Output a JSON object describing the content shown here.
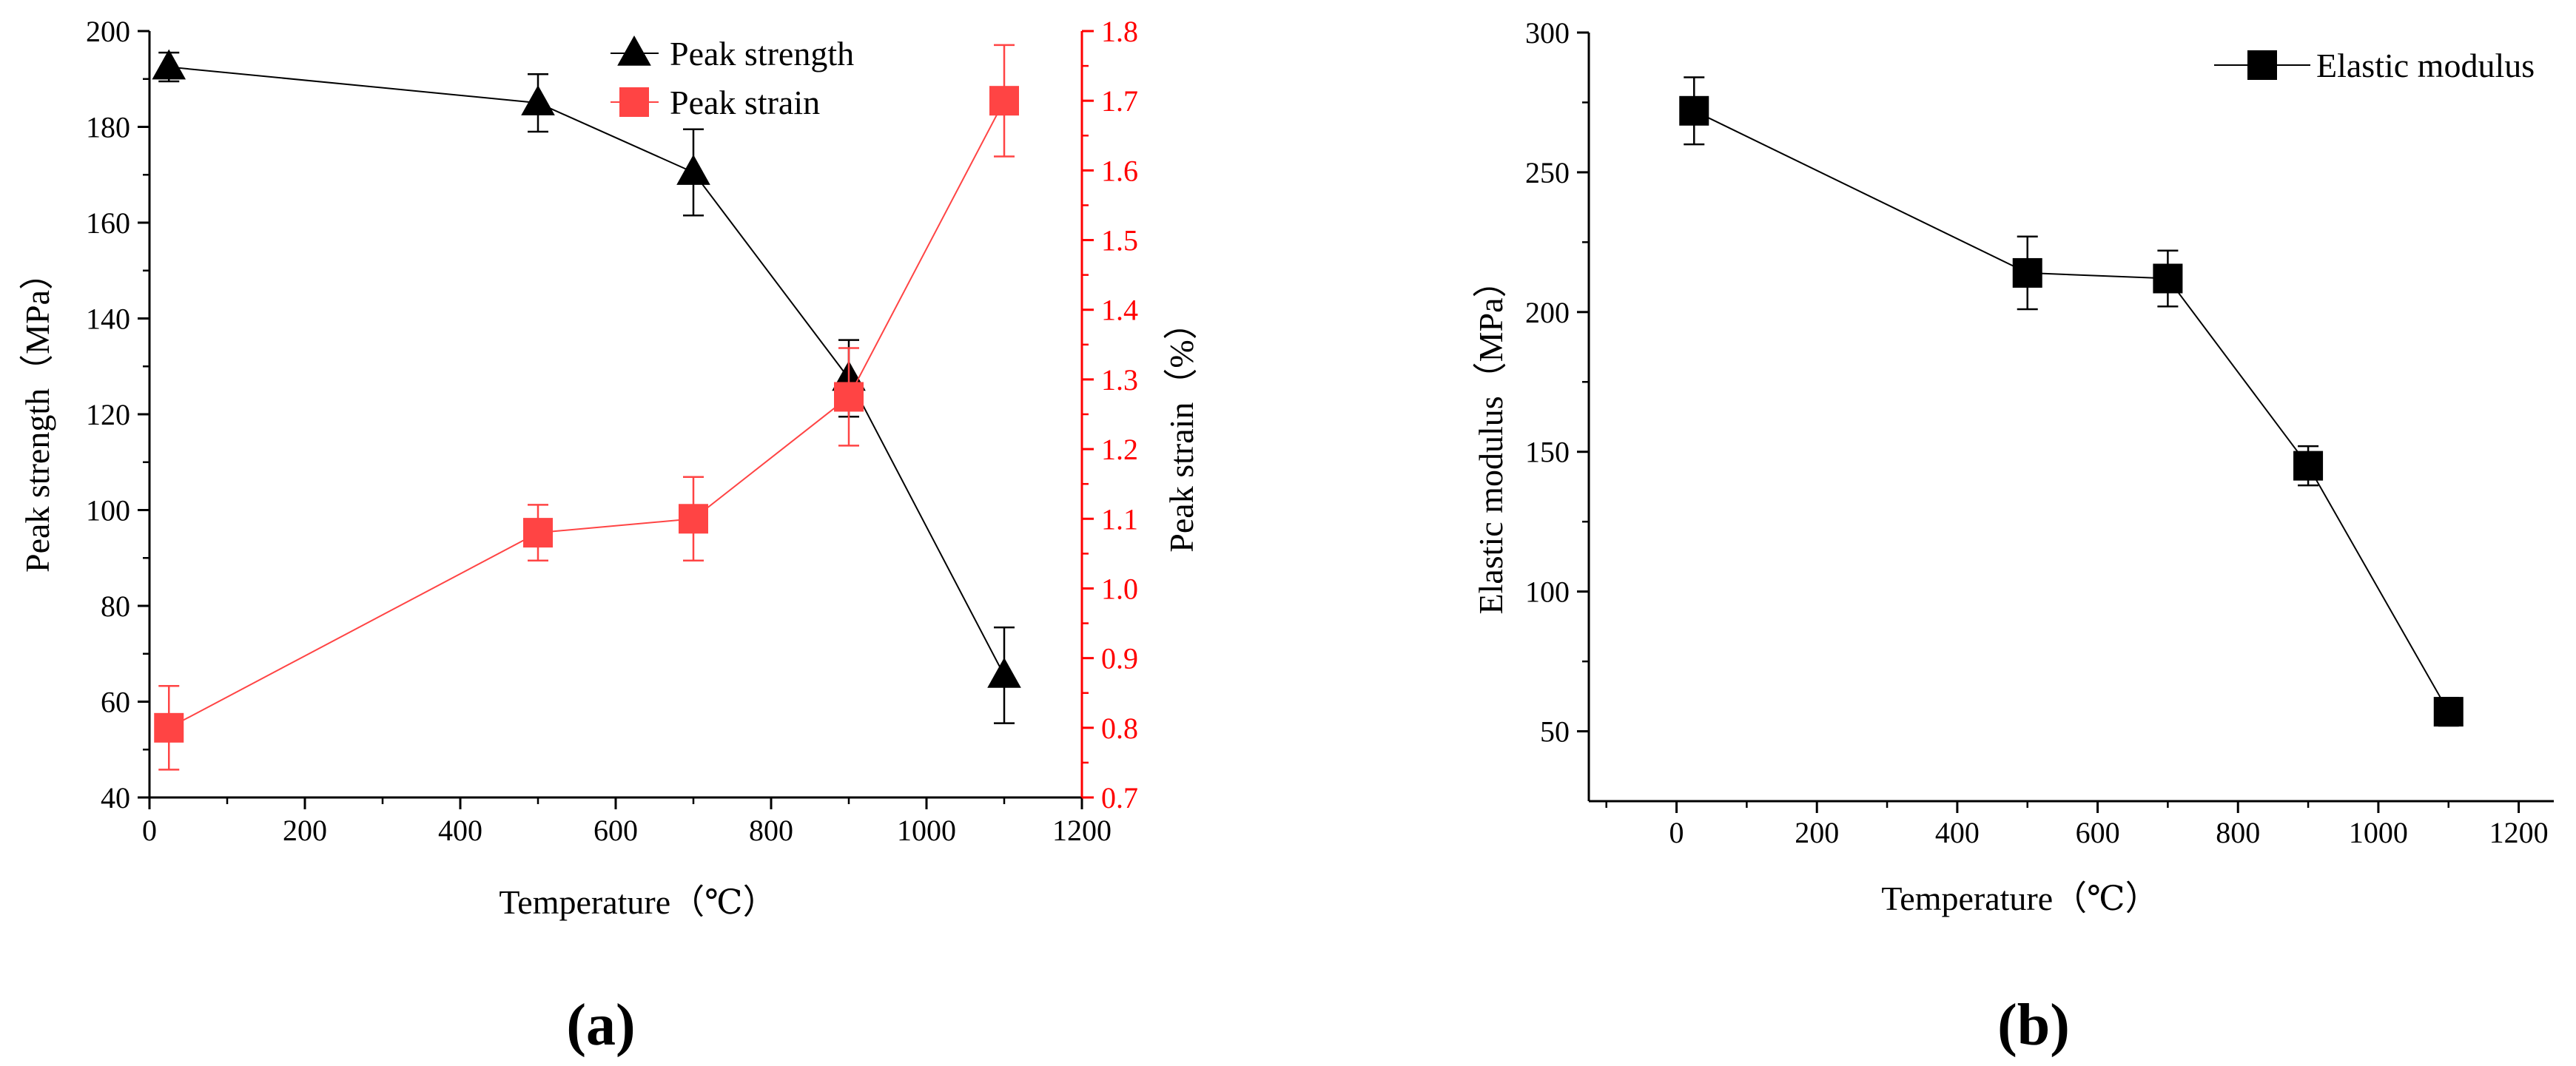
{
  "figure": {
    "panel_labels": [
      "(a)",
      "(b)"
    ]
  },
  "colors": {
    "strength": "#000000",
    "strain": "#ff4444",
    "strain_axis": "#ff0000",
    "axis": "#000000"
  },
  "chart_data": [
    {
      "type": "line",
      "panel": "(a)",
      "title": "",
      "xlabel": "Temperature（℃）",
      "ylabel": "Peak strength（MPa）",
      "y2label": "Peak strain（%）",
      "xlim": [
        0,
        1200
      ],
      "ylim": [
        40,
        200
      ],
      "y2lim": [
        0.7,
        1.8
      ],
      "xticks": [
        0,
        200,
        400,
        600,
        800,
        1000,
        1200
      ],
      "yticks": [
        40,
        60,
        80,
        100,
        120,
        140,
        160,
        180,
        200
      ],
      "y2ticks": [
        0.7,
        0.8,
        0.9,
        1.0,
        1.1,
        1.2,
        1.3,
        1.4,
        1.5,
        1.6,
        1.7,
        1.8
      ],
      "xtick_labels": [
        "0",
        "200",
        "400",
        "600",
        "800",
        "1000",
        "1200"
      ],
      "ytick_labels": [
        "40",
        "60",
        "80",
        "100",
        "120",
        "140",
        "160",
        "180",
        "200"
      ],
      "y2tick_labels": [
        "0.7",
        "0.8",
        "0.9",
        "1.0",
        "1.1",
        "1.2",
        "1.3",
        "1.4",
        "1.5",
        "1.6",
        "1.7",
        "1.8"
      ],
      "legend_position": "top-center",
      "series": [
        {
          "name": "Peak strength",
          "axis": "left",
          "marker": "triangle",
          "color": "#000000",
          "x": [
            25,
            500,
            700,
            900,
            1100
          ],
          "values": [
            192.5,
            185,
            170.5,
            127.5,
            65.5
          ],
          "error": [
            3,
            6,
            9,
            8,
            10
          ]
        },
        {
          "name": "Peak strain",
          "axis": "right",
          "marker": "square",
          "color": "#ff4444",
          "x": [
            25,
            500,
            700,
            900,
            1100
          ],
          "values": [
            0.8,
            1.08,
            1.1,
            1.275,
            1.7
          ],
          "error": [
            0.06,
            0.04,
            0.06,
            0.07,
            0.08
          ]
        }
      ]
    },
    {
      "type": "line",
      "panel": "(b)",
      "title": "",
      "xlabel": "Temperature（℃）",
      "ylabel": "Elastic modulus（MPa）",
      "xlim": [
        -125,
        1250
      ],
      "ylim": [
        25,
        300
      ],
      "xticks": [
        0,
        200,
        400,
        600,
        800,
        1000,
        1200
      ],
      "yticks": [
        50,
        100,
        150,
        200,
        250,
        300
      ],
      "xtick_labels": [
        "0",
        "200",
        "400",
        "600",
        "800",
        "1000",
        "1200"
      ],
      "ytick_labels": [
        "50",
        "100",
        "150",
        "200",
        "250",
        "300"
      ],
      "legend_position": "top-right",
      "series": [
        {
          "name": "Elastic modulus",
          "marker": "square",
          "color": "#000000",
          "x": [
            25,
            500,
            700,
            900,
            1100
          ],
          "values": [
            272,
            214,
            212,
            145,
            57
          ],
          "error": [
            12,
            13,
            10,
            7,
            5
          ]
        }
      ]
    }
  ]
}
